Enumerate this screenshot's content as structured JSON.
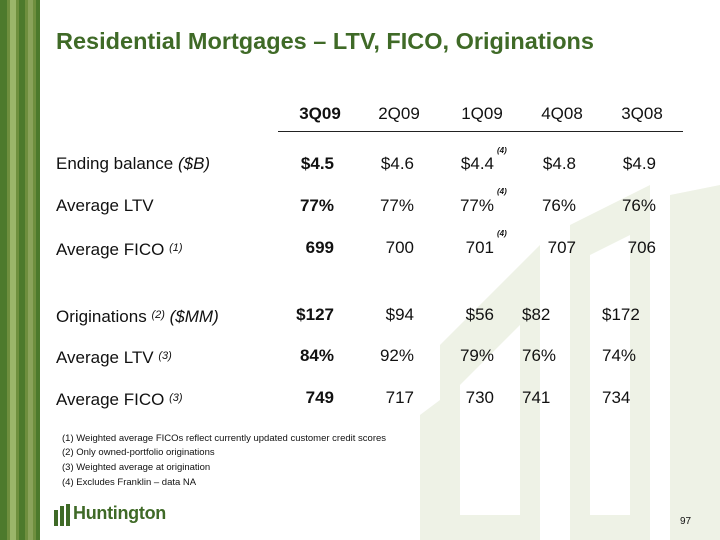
{
  "title": "Residential Mortgages – LTV, FICO, Originations",
  "columns": [
    "3Q09",
    "2Q09",
    "1Q09",
    "4Q08",
    "3Q08"
  ],
  "rows": [
    {
      "label": "Ending balance",
      "label_suffix": "($B)",
      "label_sup": "",
      "values": [
        "$4.5",
        "$4.6",
        "$4.4",
        "$4.8",
        "$4.9"
      ]
    },
    {
      "label": "Average LTV",
      "label_suffix": "",
      "label_sup": "",
      "values": [
        "77%",
        "77%",
        "77%",
        "76%",
        "76%"
      ]
    },
    {
      "label": "Average FICO",
      "label_suffix": "",
      "label_sup": "(1)",
      "values": [
        "699",
        "700",
        "701",
        "707",
        "706"
      ]
    },
    {
      "label": "Originations",
      "label_suffix": "($MM)",
      "label_sup": "(2)",
      "values": [
        "$127",
        "$94",
        "$56",
        "$82",
        "$172"
      ]
    },
    {
      "label": "Average LTV",
      "label_suffix": "",
      "label_sup": "(3)",
      "values": [
        "84%",
        "92%",
        "79%",
        "76%",
        "74%"
      ]
    },
    {
      "label": "Average FICO",
      "label_suffix": "",
      "label_sup": "(3)",
      "values": [
        "749",
        "717",
        "730",
        "741",
        "734"
      ]
    }
  ],
  "note_marker": "(4)",
  "footnotes": [
    "(1)  Weighted average FICOs reflect currently updated customer credit scores",
    "(2)  Only owned-portfolio originations",
    "(3)  Weighted average at origination",
    "(4)  Excludes Franklin – data NA"
  ],
  "logo_text": "Huntington",
  "page_number": "97",
  "colors": {
    "brand_green": "#3f6a27",
    "stripe_light": "#8aa35a",
    "stripe_dark": "#4d7a2c",
    "watermark": "#eef2e6"
  }
}
